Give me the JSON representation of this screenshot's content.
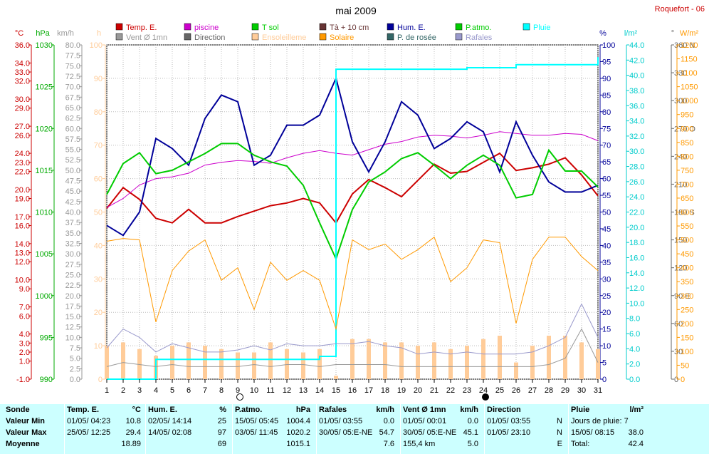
{
  "header": {
    "title": "mai 2009",
    "station": "Roquefort - 06"
  },
  "legend": [
    {
      "label": "Temp. E.",
      "color": "#cc0000"
    },
    {
      "label": "piscine",
      "color": "#cc00cc"
    },
    {
      "label": "T sol",
      "color": "#00cc00"
    },
    {
      "label": "Tà + 10 cm",
      "color": "#663333"
    },
    {
      "label": "Hum. E.",
      "color": "#000099"
    },
    {
      "label": "P.atmo.",
      "color": "#00cc00"
    },
    {
      "label": "Pluie",
      "color": "#00ffff"
    },
    {
      "label": "Vent Ø 1mn",
      "color": "#999999"
    },
    {
      "label": "Direction",
      "color": "#666666"
    },
    {
      "label": "Ensoleilleme",
      "color": "#ffcc99"
    },
    {
      "label": "Solaire",
      "color": "#ff9900"
    },
    {
      "label": "P. de rosée",
      "color": "#336666"
    },
    {
      "label": "Rafales",
      "color": "#9999cc"
    }
  ],
  "axis_units": {
    "temp": "°C",
    "press": "hPa",
    "wind": "km/h",
    "sun": "h",
    "hum": "%",
    "rain": "l/m²",
    "dir": "°",
    "solar": "W/m²"
  },
  "axes": {
    "temp_ticks": [
      "36.0",
      "34.0",
      "33.0",
      "32.0",
      "30.0",
      "29.0",
      "27.0",
      "26.0",
      "24.0",
      "23.0",
      "22.0",
      "20.0",
      "19.0",
      "17.0",
      "16.0",
      "14.0",
      "13.0",
      "12.0",
      "10.0",
      "9.0",
      "7.0",
      "6.0",
      "4.0",
      "3.0",
      "2.0",
      "1.0",
      "-1.0"
    ],
    "press_ticks": [
      "1030",
      "1025",
      "1020",
      "1015",
      "1010",
      "1005",
      "1000",
      "995",
      "990"
    ],
    "wind_ticks": [
      "80.0",
      "77.5",
      "75.0",
      "72.5",
      "70.0",
      "67.5",
      "65.0",
      "62.5",
      "60.0",
      "57.5",
      "55.0",
      "52.5",
      "50.0",
      "47.5",
      "45.0",
      "42.5",
      "40.0",
      "37.5",
      "35.0",
      "32.5",
      "30.0",
      "27.5",
      "25.0",
      "22.5",
      "20.0",
      "17.5",
      "15.0",
      "12.5",
      "10.0",
      "7.5",
      "5.0",
      "2.5",
      "0.0"
    ],
    "sun_ticks": [
      "100",
      "90",
      "80",
      "70",
      "60",
      "50",
      "40",
      "30",
      "20",
      "10",
      "0"
    ],
    "hum_ticks": [
      "100",
      "95",
      "90",
      "85",
      "80",
      "75",
      "70",
      "65",
      "60",
      "55",
      "50",
      "45",
      "40",
      "35",
      "30",
      "25",
      "20",
      "15",
      "10",
      "5",
      "0"
    ],
    "rain_ticks": [
      "44.0",
      "42.0",
      "40.0",
      "38.0",
      "36.0",
      "34.0",
      "32.0",
      "30.0",
      "28.0",
      "26.0",
      "24.0",
      "22.0",
      "20.0",
      "18.0",
      "16.0",
      "14.0",
      "12.0",
      "10.0",
      "8.0",
      "6.0",
      "4.0",
      "2.0",
      "0.0"
    ],
    "dir_ticks": [
      "360 N",
      "330",
      "300",
      "270 O",
      "240",
      "210",
      "180 S",
      "150",
      "120",
      "90 E",
      "60",
      "30",
      "0"
    ],
    "solar_ticks": [
      "1200",
      "1150",
      "1100",
      "1050",
      "1000",
      "950",
      "900",
      "850",
      "800",
      "750",
      "700",
      "650",
      "600",
      "550",
      "500",
      "450",
      "400",
      "350",
      "300",
      "250",
      "200",
      "150",
      "100",
      "50",
      "0"
    ]
  },
  "chart_data": {
    "type": "line",
    "title": "mai 2009",
    "x": [
      1,
      2,
      3,
      4,
      5,
      6,
      7,
      8,
      9,
      10,
      11,
      12,
      13,
      14,
      15,
      16,
      17,
      18,
      19,
      20,
      21,
      22,
      23,
      24,
      25,
      26,
      27,
      28,
      29,
      30,
      31
    ],
    "series": [
      {
        "name": "Temp. E.",
        "axis": "°C",
        "values": [
          17.9,
          20.2,
          18.9,
          16.8,
          16.3,
          17.8,
          16.3,
          16.3,
          17.0,
          17.6,
          18.2,
          18.5,
          19.0,
          18.5,
          16.3,
          19.5,
          21.1,
          20.2,
          19.2,
          21.0,
          22.8,
          21.8,
          22.0,
          23.0,
          24.0,
          22.1,
          22.4,
          22.8,
          23.5,
          21.6,
          19.3
        ]
      },
      {
        "name": "piscine",
        "axis": "°C",
        "values": [
          18.0,
          19.0,
          20.5,
          21.2,
          21.4,
          21.8,
          22.7,
          23.0,
          23.2,
          23.1,
          22.9,
          23.5,
          24.0,
          24.3,
          24.0,
          23.8,
          24.4,
          25.0,
          25.3,
          25.8,
          26.0,
          25.9,
          25.7,
          26.0,
          26.4,
          26.2,
          26.0,
          26.0,
          26.2,
          26.1,
          25.4
        ]
      },
      {
        "name": "Hum. E.",
        "axis": "%",
        "values": [
          46,
          43,
          50,
          72,
          69,
          64,
          78,
          85,
          83,
          64,
          67,
          76,
          76,
          79,
          90,
          71,
          62,
          71,
          83,
          79,
          69,
          72,
          77,
          74,
          62,
          77,
          67,
          59,
          56,
          56,
          58
        ]
      },
      {
        "name": "P.atmo.",
        "axis": "hPa",
        "values": [
          1012.1,
          1015.8,
          1017.1,
          1014.6,
          1015.0,
          1016.0,
          1017.0,
          1018.2,
          1018.2,
          1016.8,
          1016.0,
          1015.5,
          1013.2,
          1008.7,
          1004.4,
          1010.3,
          1013.6,
          1014.8,
          1016.4,
          1017.1,
          1015.6,
          1014.0,
          1015.6,
          1016.8,
          1015.6,
          1011.7,
          1012.1,
          1017.4,
          1014.9,
          1014.9,
          1013.0
        ]
      },
      {
        "name": "Pluie",
        "axis": "l/m²",
        "values": [
          0,
          0,
          0,
          2.6,
          2.6,
          2.6,
          2.6,
          2.6,
          2.6,
          2.6,
          2.6,
          2.6,
          2.6,
          3.0,
          40.8,
          40.8,
          40.8,
          40.8,
          40.8,
          40.8,
          40.8,
          40.8,
          41.0,
          41.0,
          41.0,
          41.4,
          41.4,
          41.4,
          41.4,
          41.4,
          42.4
        ]
      },
      {
        "name": "Solaire",
        "axis": "W/m²",
        "values": [
          495,
          505,
          500,
          205,
          390,
          460,
          500,
          355,
          400,
          250,
          420,
          355,
          390,
          355,
          180,
          500,
          465,
          485,
          430,
          465,
          510,
          350,
          400,
          500,
          490,
          200,
          430,
          510,
          510,
          440,
          390
        ]
      },
      {
        "name": "Ensoleilleme",
        "axis": "h",
        "values": [
          10,
          11,
          9,
          7,
          10,
          11,
          10,
          9,
          8,
          8,
          11,
          9,
          8,
          9,
          1,
          12,
          12,
          11,
          11,
          10,
          11,
          9,
          10,
          12,
          13,
          5,
          10,
          13,
          13,
          11,
          9
        ]
      },
      {
        "name": "Rafales",
        "axis": "km/h",
        "values": [
          7.5,
          12.0,
          10.0,
          6.5,
          8.5,
          7.5,
          6.5,
          6.5,
          7.0,
          8.0,
          7.0,
          8.5,
          8.0,
          8.0,
          8.5,
          8.5,
          9.0,
          8.0,
          7.5,
          6.0,
          6.5,
          6.0,
          6.5,
          6.0,
          6.0,
          6.0,
          6.5,
          8.0,
          10.0,
          18.0,
          10.0
        ]
      },
      {
        "name": "Vent Ø 1mn",
        "axis": "km/h",
        "values": [
          3.0,
          4.0,
          3.5,
          3.0,
          3.5,
          3.0,
          3.0,
          3.0,
          3.0,
          3.5,
          3.0,
          3.5,
          3.5,
          3.0,
          3.5,
          3.5,
          3.5,
          3.5,
          3.0,
          3.0,
          3.0,
          3.0,
          3.0,
          3.0,
          3.0,
          3.0,
          3.0,
          3.5,
          5.0,
          12.0,
          4.0
        ]
      }
    ],
    "xlim": [
      1,
      31
    ],
    "ranges": {
      "°C": [
        -1,
        36
      ],
      "hPa": [
        990,
        1030
      ],
      "km/h": [
        0,
        80
      ],
      "h": [
        0,
        100
      ],
      "%": [
        0,
        100
      ],
      "l/m²": [
        0,
        44
      ],
      "°": [
        0,
        360
      ],
      "W/m²": [
        0,
        1200
      ]
    },
    "grid": true,
    "legend_placement": "top"
  },
  "summary": {
    "row_labels": [
      "Sonde",
      "Valeur Min",
      "Valeur Max",
      "Moyenne"
    ],
    "columns": [
      {
        "title": "Temp. E.",
        "unit": "°C",
        "min_date": "01/05/ 04:23",
        "min_val": "10.8",
        "max_date": "25/05/ 12:25",
        "max_val": "29.4",
        "avg": "18.89"
      },
      {
        "title": "Hum. E.",
        "unit": "%",
        "min_date": "02/05/ 14:14",
        "min_val": "25",
        "max_date": "14/05/ 02:08",
        "max_val": "97",
        "avg": "69"
      },
      {
        "title": "P.atmo.",
        "unit": "hPa",
        "min_date": "15/05/ 05:45",
        "min_val": "1004.4",
        "max_date": "03/05/ 11:45",
        "max_val": "1020.2",
        "avg": "1015.1"
      },
      {
        "title": "Rafales",
        "unit": "km/h",
        "min_date": "01/05/ 03:55",
        "min_val": "0.0",
        "max_date": "30/05/ 05:E-NE",
        "max_val": "54.7",
        "avg": "7.6"
      },
      {
        "title": "Vent Ø 1mn",
        "unit": "km/h",
        "min_date": "01/05/ 00:01",
        "min_val": "0.0",
        "max_date": "30/05/ 05:E-NE",
        "max_val": "45.1",
        "avg_prefix": "155,4 km",
        "avg": "5.0"
      },
      {
        "title": "Direction",
        "unit": "",
        "min_date": "01/05/ 03:55",
        "min_val": "N",
        "max_date": "01/05/ 23:10",
        "max_val": "N",
        "avg": "E"
      },
      {
        "title": "Pluie",
        "unit": "l/m²",
        "min_date": "Jours de pluie: 7",
        "min_val": "",
        "max_date": "15/05/ 08:15",
        "max_val": "38.0",
        "avg_prefix": "Total:",
        "avg": "42.4"
      }
    ]
  }
}
